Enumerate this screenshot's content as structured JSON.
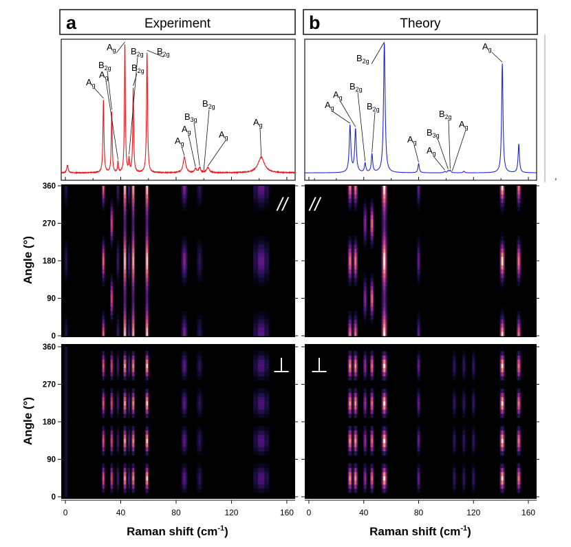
{
  "figure": {
    "panel_a": {
      "letter": "a",
      "title": "Experiment"
    },
    "panel_b": {
      "letter": "b",
      "title": "Theory"
    },
    "x_axis_label": "Raman shift (cm",
    "x_axis_sup": "-1",
    "x_axis_close": ")",
    "y_axis_label": "Angle (°)",
    "parallel_symbol": "//",
    "perpendicular_symbol": "⊥"
  },
  "colors": {
    "experiment_line": "#e8141b",
    "theory_line": "#1e24d6",
    "heatmap_bg": "#000000"
  },
  "chart_data": [
    {
      "type": "line",
      "title": "Experiment",
      "xlabel": "Raman shift (cm-1)",
      "xlim": [
        -3,
        166
      ],
      "xticks": [
        0,
        40,
        80,
        120,
        160
      ],
      "series": [
        {
          "name": "Experiment",
          "peaks": [
            {
              "x": 1.5,
              "h": 0.06,
              "w": 0.6
            },
            {
              "x": 27.5,
              "h": 0.56,
              "w": 0.45
            },
            {
              "x": 33.5,
              "h": 0.47,
              "w": 0.4
            },
            {
              "x": 38.0,
              "h": 0.08,
              "w": 0.35
            },
            {
              "x": 43.0,
              "h": 0.99,
              "w": 0.4
            },
            {
              "x": 46.0,
              "h": 0.1,
              "w": 0.4
            },
            {
              "x": 49.0,
              "h": 0.65,
              "w": 0.4
            },
            {
              "x": 59.0,
              "h": 0.93,
              "w": 0.45
            },
            {
              "x": 86.0,
              "h": 0.12,
              "w": 1.1
            },
            {
              "x": 94.0,
              "h": 0.03,
              "w": 0.8
            },
            {
              "x": 97.0,
              "h": 0.04,
              "w": 0.8
            },
            {
              "x": 103.0,
              "h": 0.04,
              "w": 1.2
            },
            {
              "x": 141.5,
              "h": 0.12,
              "w": 2.8
            }
          ],
          "noise": 0.006
        }
      ],
      "annotations": [
        {
          "text": "A",
          "sub": "g",
          "x": 27.5
        },
        {
          "text": "B",
          "sub": "2g",
          "x": 33.5
        },
        {
          "text": "A",
          "sub": "g",
          "x": 38.0
        },
        {
          "text": "A",
          "sub": "g",
          "x": 43.0
        },
        {
          "text": "B",
          "sub": "2g",
          "x": 46.0
        },
        {
          "text": "B",
          "sub": "2g",
          "x": 49.0
        },
        {
          "text": "B",
          "sub": "2g",
          "x": 59.0
        },
        {
          "text": "A",
          "sub": "g",
          "x": 86.0
        },
        {
          "text": "A",
          "sub": "g",
          "x": 94.0
        },
        {
          "text": "B",
          "sub": "3g",
          "x": 97.0
        },
        {
          "text": "B",
          "sub": "2g",
          "x": 100.0
        },
        {
          "text": "A",
          "sub": "g",
          "x": 103.0
        },
        {
          "text": "A",
          "sub": "g",
          "x": 141.5
        }
      ]
    },
    {
      "type": "line",
      "title": "Theory",
      "xlabel": "Raman shift (cm-1)",
      "xlim": [
        -3,
        166
      ],
      "xticks": [
        0,
        40,
        80,
        120,
        160
      ],
      "series": [
        {
          "name": "Theory",
          "peaks": [
            {
              "x": 30.0,
              "h": 0.36,
              "w": 0.7
            },
            {
              "x": 34.0,
              "h": 0.33,
              "w": 0.7
            },
            {
              "x": 41.0,
              "h": 0.07,
              "w": 0.6
            },
            {
              "x": 46.0,
              "h": 0.14,
              "w": 0.6
            },
            {
              "x": 55.0,
              "h": 1.0,
              "w": 0.7
            },
            {
              "x": 80.0,
              "h": 0.07,
              "w": 0.6
            },
            {
              "x": 99.0,
              "h": 0.01,
              "w": 0.6
            },
            {
              "x": 101.5,
              "h": 0.015,
              "w": 0.6
            },
            {
              "x": 103.0,
              "h": 0.02,
              "w": 0.6
            },
            {
              "x": 113.0,
              "h": 0.012,
              "w": 0.6
            },
            {
              "x": 141.0,
              "h": 0.84,
              "w": 0.6
            },
            {
              "x": 153.0,
              "h": 0.22,
              "w": 0.6
            }
          ],
          "noise": 0
        }
      ],
      "annotations": [
        {
          "text": "A",
          "sub": "g",
          "x": 30.0
        },
        {
          "text": "A",
          "sub": "g",
          "x": 34.0
        },
        {
          "text": "B",
          "sub": "2g",
          "x": 41.0
        },
        {
          "text": "B",
          "sub": "2g",
          "x": 46.0
        },
        {
          "text": "B",
          "sub": "2g",
          "x": 55.0
        },
        {
          "text": "A",
          "sub": "g",
          "x": 80.0
        },
        {
          "text": "A",
          "sub": "g",
          "x": 99.0
        },
        {
          "text": "B",
          "sub": "3g",
          "x": 101.5
        },
        {
          "text": "B",
          "sub": "2g",
          "x": 103.0
        },
        {
          "text": "A",
          "sub": "g",
          "x": 104.5
        },
        {
          "text": "A",
          "sub": "g",
          "x": 141.0
        }
      ]
    },
    {
      "type": "heatmap",
      "title": "Experiment parallel (//)",
      "xlim": [
        -3,
        166
      ],
      "ylim": [
        0,
        360
      ],
      "yticks": [
        0,
        90,
        180,
        270,
        360
      ],
      "lines": [
        {
          "x": 0.5,
          "amp": 0.2,
          "w": 0.6,
          "mode": "even"
        },
        {
          "x": 27.5,
          "amp": 0.85,
          "w": 0.5,
          "mode": "even"
        },
        {
          "x": 33.5,
          "amp": 0.75,
          "w": 0.5,
          "mode": "odd"
        },
        {
          "x": 38.0,
          "amp": 0.3,
          "w": 0.5,
          "mode": "even"
        },
        {
          "x": 43.0,
          "amp": 1.0,
          "w": 0.55,
          "mode": "mix"
        },
        {
          "x": 46.0,
          "amp": 0.35,
          "w": 0.5,
          "mode": "even"
        },
        {
          "x": 49.0,
          "amp": 0.95,
          "w": 0.55,
          "mode": "mix"
        },
        {
          "x": 59.0,
          "amp": 1.0,
          "w": 0.6,
          "mode": "mix"
        },
        {
          "x": 86.0,
          "amp": 0.45,
          "w": 1.0,
          "mode": "even"
        },
        {
          "x": 97.0,
          "amp": 0.2,
          "w": 1.0,
          "mode": "even"
        },
        {
          "x": 141.5,
          "amp": 0.35,
          "w": 2.6,
          "mode": "even"
        }
      ]
    },
    {
      "type": "heatmap",
      "title": "Theory parallel (//)",
      "xlim": [
        -3,
        166
      ],
      "ylim": [
        0,
        360
      ],
      "yticks": [
        0,
        90,
        180,
        270,
        360
      ],
      "lines": [
        {
          "x": 30.0,
          "amp": 0.85,
          "w": 0.7,
          "mode": "even"
        },
        {
          "x": 34.0,
          "amp": 0.85,
          "w": 0.7,
          "mode": "even"
        },
        {
          "x": 41.0,
          "amp": 0.5,
          "w": 0.6,
          "mode": "odd"
        },
        {
          "x": 46.0,
          "amp": 0.85,
          "w": 0.6,
          "mode": "odd"
        },
        {
          "x": 55.0,
          "amp": 1.0,
          "w": 0.9,
          "mode": "mix"
        },
        {
          "x": 80.0,
          "amp": 0.4,
          "w": 0.6,
          "mode": "even"
        },
        {
          "x": 141.0,
          "amp": 1.0,
          "w": 0.8,
          "mode": "even"
        },
        {
          "x": 153.0,
          "amp": 0.85,
          "w": 0.7,
          "mode": "even"
        }
      ]
    },
    {
      "type": "heatmap",
      "title": "Experiment perpendicular (⊥)",
      "xlim": [
        -3,
        166
      ],
      "ylim": [
        0,
        360
      ],
      "yticks": [
        0,
        90,
        180,
        270,
        360
      ],
      "lines": [
        {
          "x": 0.5,
          "amp": 0.2,
          "w": 0.6,
          "mode": "flat"
        },
        {
          "x": 27.5,
          "amp": 0.8,
          "w": 0.5,
          "mode": "cross"
        },
        {
          "x": 33.5,
          "amp": 0.75,
          "w": 0.5,
          "mode": "cross"
        },
        {
          "x": 38.0,
          "amp": 0.3,
          "w": 0.5,
          "mode": "cross"
        },
        {
          "x": 43.0,
          "amp": 0.95,
          "w": 0.55,
          "mode": "cross"
        },
        {
          "x": 46.0,
          "amp": 0.35,
          "w": 0.5,
          "mode": "cross"
        },
        {
          "x": 49.0,
          "amp": 0.9,
          "w": 0.55,
          "mode": "cross"
        },
        {
          "x": 59.0,
          "amp": 1.0,
          "w": 0.6,
          "mode": "cross"
        },
        {
          "x": 86.0,
          "amp": 0.35,
          "w": 1.0,
          "mode": "cross"
        },
        {
          "x": 97.0,
          "amp": 0.2,
          "w": 1.0,
          "mode": "cross"
        },
        {
          "x": 141.5,
          "amp": 0.3,
          "w": 2.6,
          "mode": "cross"
        }
      ]
    },
    {
      "type": "heatmap",
      "title": "Theory perpendicular (⊥)",
      "xlim": [
        -3,
        166
      ],
      "ylim": [
        0,
        360
      ],
      "yticks": [
        0,
        90,
        180,
        270,
        360
      ],
      "lines": [
        {
          "x": 30.0,
          "amp": 0.9,
          "w": 0.7,
          "mode": "cross"
        },
        {
          "x": 34.0,
          "amp": 0.9,
          "w": 0.7,
          "mode": "cross"
        },
        {
          "x": 41.0,
          "amp": 0.55,
          "w": 0.6,
          "mode": "cross"
        },
        {
          "x": 46.0,
          "amp": 0.85,
          "w": 0.6,
          "mode": "cross"
        },
        {
          "x": 55.0,
          "amp": 1.0,
          "w": 0.9,
          "mode": "cross"
        },
        {
          "x": 80.0,
          "amp": 0.4,
          "w": 0.6,
          "mode": "cross"
        },
        {
          "x": 106.0,
          "amp": 0.25,
          "w": 0.6,
          "mode": "cross"
        },
        {
          "x": 113.0,
          "amp": 0.25,
          "w": 0.6,
          "mode": "cross"
        },
        {
          "x": 120.0,
          "amp": 0.25,
          "w": 0.6,
          "mode": "cross"
        },
        {
          "x": 141.0,
          "amp": 1.0,
          "w": 0.8,
          "mode": "cross"
        },
        {
          "x": 153.0,
          "amp": 0.85,
          "w": 0.7,
          "mode": "cross"
        }
      ]
    }
  ]
}
